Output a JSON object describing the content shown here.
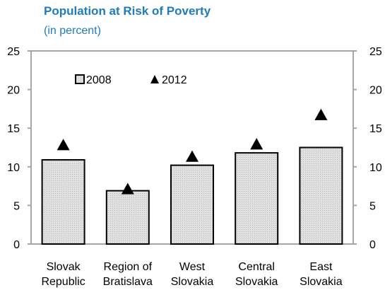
{
  "chart_data": {
    "type": "bar",
    "title": "Population at Risk of Poverty",
    "subtitle": "(in percent)",
    "categories": [
      [
        "Slovak",
        "Republic"
      ],
      [
        "Region of",
        "Bratislava"
      ],
      [
        "West",
        "Slovakia"
      ],
      [
        "Central",
        "Slovakia"
      ],
      [
        "East",
        "Slovakia"
      ]
    ],
    "series": [
      {
        "name": "2008",
        "kind": "bar",
        "values": [
          10.9,
          6.9,
          10.2,
          11.8,
          12.5
        ]
      },
      {
        "name": "2012",
        "kind": "marker",
        "values": [
          12.8,
          7.1,
          11.3,
          12.9,
          16.7
        ]
      }
    ],
    "ylim": [
      0,
      25
    ],
    "yticks": [
      0,
      5,
      10,
      15,
      20,
      25
    ],
    "secondary_axis": true,
    "legend": "top-left",
    "grid": false,
    "colors": {
      "bar_fill": "#d9d9d9",
      "bar_stroke": "#000000",
      "axis": "#a6a6a6",
      "title": "#1f7bbf",
      "marker": "#000000"
    }
  }
}
